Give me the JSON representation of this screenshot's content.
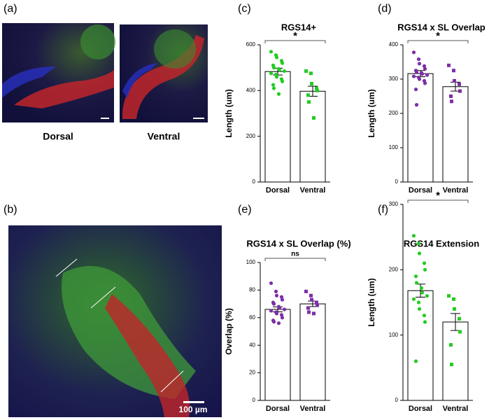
{
  "figure": {
    "panel_labels": [
      "(a)",
      "(b)",
      "(c)",
      "(d)",
      "(e)",
      "(f)"
    ],
    "image_labels": [
      "Dorsal",
      "Ventral"
    ],
    "scale_bar": "100 µm"
  },
  "chart_data": [
    {
      "type": "bar",
      "title": "RGS14+",
      "ylabel": "Length (um)",
      "categories": [
        "Dorsal",
        "Ventral"
      ],
      "values": [
        483,
        397
      ],
      "errors": [
        15,
        22
      ],
      "points": [
        [
          570,
          555,
          545,
          530,
          520,
          510,
          500,
          495,
          490,
          485,
          475,
          470,
          460,
          450,
          440,
          425,
          410,
          385
        ],
        [
          485,
          475,
          430,
          410,
          400,
          380,
          350,
          280
        ]
      ],
      "color": "#22cc22",
      "point_markers": [
        "circle",
        "square"
      ],
      "significance": "*",
      "ylim": [
        0,
        600
      ],
      "yticks": [
        0,
        200,
        400,
        600
      ]
    },
    {
      "type": "bar",
      "title": "RGS14 x SL Overlap",
      "ylabel": "Length (um)",
      "categories": [
        "Dorsal",
        "Ventral"
      ],
      "values": [
        316,
        278
      ],
      "errors": [
        9,
        13
      ],
      "points": [
        [
          378,
          358,
          345,
          338,
          330,
          325,
          320,
          318,
          315,
          312,
          308,
          305,
          300,
          295,
          288,
          270,
          225
        ],
        [
          340,
          325,
          295,
          285,
          265,
          250,
          235
        ]
      ],
      "color": "#7b2fa8",
      "point_markers": [
        "circle",
        "square"
      ],
      "significance": "*",
      "ylim": [
        0,
        400
      ],
      "yticks": [
        0,
        100,
        200,
        300,
        400
      ]
    },
    {
      "type": "bar",
      "title": "RGS14 x SL Overlap (%)",
      "ylabel": "Overlap (%)",
      "categories": [
        "Dorsal",
        "Ventral"
      ],
      "values": [
        66,
        70
      ],
      "errors": [
        1.8,
        2
      ],
      "points": [
        [
          85,
          79,
          76,
          75,
          73,
          71,
          70,
          68,
          67,
          66,
          65,
          64,
          63,
          62,
          60,
          58,
          57,
          56
        ],
        [
          79,
          76,
          73,
          71,
          69,
          67,
          64,
          63
        ]
      ],
      "color": "#7b2fa8",
      "point_markers": [
        "circle",
        "square"
      ],
      "significance": "ns",
      "ylim": [
        0,
        100
      ],
      "yticks": [
        0,
        20,
        40,
        60,
        80,
        100
      ]
    },
    {
      "type": "bar",
      "title": "RGS14 Extension",
      "ylabel": "Length (um)",
      "categories": [
        "Dorsal",
        "Ventral"
      ],
      "values": [
        168,
        120
      ],
      "errors": [
        10,
        13
      ],
      "points": [
        [
          252,
          240,
          225,
          210,
          200,
          190,
          180,
          172,
          165,
          160,
          155,
          150,
          140,
          130,
          120,
          60
        ],
        [
          160,
          155,
          140,
          125,
          105,
          85,
          55
        ]
      ],
      "color": "#22cc22",
      "point_markers": [
        "circle",
        "square"
      ],
      "significance": "*",
      "ylim": [
        0,
        300
      ],
      "yticks": [
        0,
        100,
        200,
        300
      ]
    }
  ]
}
